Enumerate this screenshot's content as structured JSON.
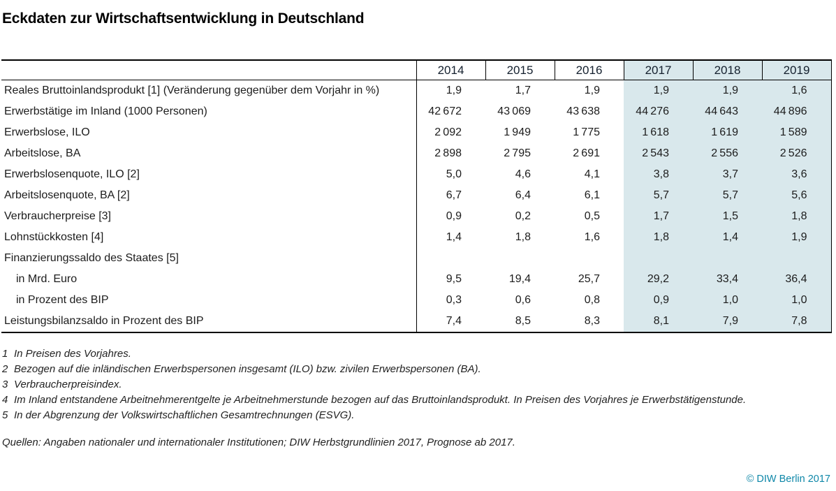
{
  "title": "Eckdaten zur Wirtschaftsentwicklung in Deutschland",
  "table": {
    "columns": [
      "2014",
      "2015",
      "2016",
      "2017",
      "2018",
      "2019"
    ],
    "forecast_start_index": 3,
    "rows": [
      {
        "label": "Reales Bruttoinlandsprodukt [1] (Veränderung gegenüber dem Vorjahr in %)",
        "indent": false,
        "values": [
          "1,9",
          "1,7",
          "1,9",
          "1,9",
          "1,9",
          "1,6"
        ]
      },
      {
        "label": "Erwerbstätige im Inland (1000 Personen)",
        "indent": false,
        "values": [
          "42 672",
          "43 069",
          "43 638",
          "44 276",
          "44 643",
          "44 896"
        ]
      },
      {
        "label": "Erwerbslose, ILO",
        "indent": false,
        "values": [
          "2 092",
          "1 949",
          "1 775",
          "1 618",
          "1 619",
          "1 589"
        ]
      },
      {
        "label": "Arbeitslose, BA",
        "indent": false,
        "values": [
          "2 898",
          "2 795",
          "2 691",
          "2 543",
          "2 556",
          "2 526"
        ]
      },
      {
        "label": "Erwerbslosenquote, ILO [2]",
        "indent": false,
        "values": [
          "5,0",
          "4,6",
          "4,1",
          "3,8",
          "3,7",
          "3,6"
        ]
      },
      {
        "label": "Arbeitslosenquote, BA [2]",
        "indent": false,
        "values": [
          "6,7",
          "6,4",
          "6,1",
          "5,7",
          "5,7",
          "5,6"
        ]
      },
      {
        "label": "Verbraucherpreise [3]",
        "indent": false,
        "values": [
          "0,9",
          "0,2",
          "0,5",
          "1,7",
          "1,5",
          "1,8"
        ]
      },
      {
        "label": "Lohnstückkosten [4]",
        "indent": false,
        "values": [
          "1,4",
          "1,8",
          "1,6",
          "1,8",
          "1,4",
          "1,9"
        ]
      },
      {
        "label": "Finanzierungssaldo des Staates [5]",
        "indent": false,
        "values": [
          "",
          "",
          "",
          "",
          "",
          ""
        ]
      },
      {
        "label": "in Mrd. Euro",
        "indent": true,
        "values": [
          "9,5",
          "19,4",
          "25,7",
          "29,2",
          "33,4",
          "36,4"
        ]
      },
      {
        "label": "in Prozent des BIP",
        "indent": true,
        "values": [
          "0,3",
          "0,6",
          "0,8",
          "0,9",
          "1,0",
          "1,0"
        ]
      },
      {
        "label": "Leistungsbilanzsaldo in Prozent des BIP",
        "indent": false,
        "values": [
          "7,4",
          "8,5",
          "8,3",
          "8,1",
          "7,9",
          "7,8"
        ]
      }
    ]
  },
  "footnotes": [
    {
      "num": "1",
      "text": "In Preisen des Vorjahres."
    },
    {
      "num": "2",
      "text": "Bezogen auf die inländischen Erwerbspersonen insgesamt (ILO) bzw. zivilen Erwerbspersonen (BA)."
    },
    {
      "num": "3",
      "text": "Verbraucherpreisindex."
    },
    {
      "num": "4",
      "text": "Im Inland entstandene Arbeitnehmerentgelte je Arbeitnehmerstunde bezogen auf das Bruttoinlandsprodukt. In Preisen des Vorjahres je Erwerbstätigenstunde."
    },
    {
      "num": "5",
      "text": "In der Abgrenzung der Volkswirtschaftlichen Gesamtrechnungen (ESVG)."
    }
  ],
  "source": "Quellen: Angaben nationaler und internationaler Institutionen; DIW Herbstgrundlinien 2017, Prognose ab 2017.",
  "copyright": "© DIW Berlin 2017",
  "colors": {
    "forecast_bg": "#d9e8ec",
    "accent": "#0e87a8",
    "rule": "#000000"
  }
}
